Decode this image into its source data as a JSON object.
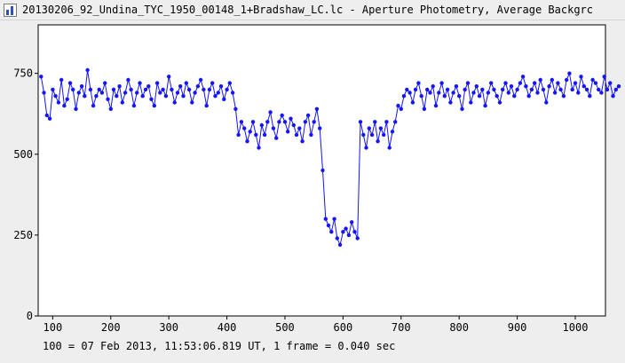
{
  "window": {
    "title": "20130206_92_Undina_TYC_1950_00148_1+Bradshaw_LC.lc - Aperture Photometry, Average Backgrc",
    "icon": "light-curve-app-icon"
  },
  "footer": {
    "text": "100 = 07 Feb 2013, 11:53:06.819 UT, 1 frame = 0.040 sec"
  },
  "chart_data": {
    "type": "line",
    "title": "",
    "xlabel": "",
    "ylabel": "",
    "xlim": [
      75,
      1052
    ],
    "ylim": [
      0,
      900
    ],
    "x_ticks": [
      100,
      200,
      300,
      400,
      500,
      600,
      700,
      800,
      900,
      1000
    ],
    "y_ticks": [
      0,
      250,
      500,
      750
    ],
    "grid": true,
    "series_color": "#1414ff",
    "series": [
      {
        "x_start": 80,
        "x_step": 5,
        "values": [
          740,
          690,
          620,
          610,
          700,
          680,
          660,
          730,
          650,
          670,
          720,
          700,
          640,
          690,
          710,
          680,
          760,
          700,
          650,
          680,
          700,
          690,
          720,
          670,
          640,
          700,
          680,
          710,
          660,
          690,
          730,
          700,
          650,
          690,
          720,
          680,
          700,
          710,
          670,
          650,
          720,
          690,
          700,
          680,
          740,
          700,
          660,
          690,
          710,
          680,
          720,
          700,
          660,
          690,
          710,
          730,
          700,
          650,
          700,
          720,
          680,
          690,
          710,
          670,
          700,
          720,
          690,
          640,
          560,
          600,
          580,
          540,
          570,
          600,
          560,
          520,
          590,
          560,
          600,
          630,
          580,
          550,
          600,
          620,
          600,
          570,
          610,
          590,
          560,
          580,
          540,
          600,
          620,
          560,
          600,
          640,
          580,
          450,
          300,
          280,
          260,
          300,
          240,
          220,
          260,
          270,
          250,
          290,
          260,
          240,
          600,
          560,
          520,
          580,
          560,
          600,
          540,
          580,
          560,
          600,
          520,
          570,
          600,
          650,
          640,
          680,
          700,
          690,
          660,
          700,
          720,
          680,
          640,
          700,
          690,
          710,
          650,
          690,
          720,
          680,
          700,
          660,
          690,
          710,
          680,
          640,
          700,
          720,
          660,
          690,
          710,
          680,
          700,
          650,
          690,
          720,
          700,
          680,
          660,
          700,
          720,
          690,
          710,
          680,
          700,
          720,
          740,
          710,
          680,
          700,
          720,
          690,
          730,
          700,
          660,
          710,
          730,
          690,
          720,
          700,
          680,
          730,
          750,
          700,
          720,
          690,
          740,
          710,
          700,
          680,
          730,
          720,
          700,
          690,
          740,
          700,
          720,
          680,
          700,
          710
        ]
      }
    ]
  }
}
